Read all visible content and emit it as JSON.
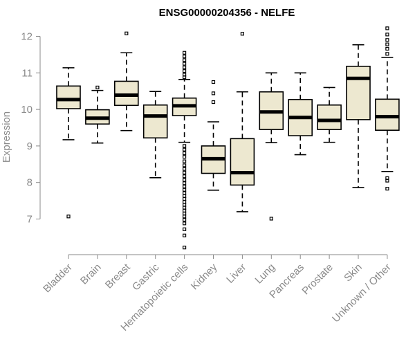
{
  "chart_data": {
    "type": "boxplot",
    "title": "ENSG00000204356 - NELFE",
    "ylabel": "Expression",
    "xlabel": "",
    "ylim": [
      6.0,
      12.4
    ],
    "yticks": [
      7,
      8,
      9,
      10,
      11,
      12
    ],
    "grid": false,
    "box_fill": "#ede8d0",
    "box_stroke": "#000000",
    "axis_color": "#8a8a8a",
    "categories": [
      "Bladder",
      "Brain",
      "Breast",
      "Gastric",
      "Hematopoietic cells",
      "Kidney",
      "Liver",
      "Lung",
      "Pancreas",
      "Prostate",
      "Skin",
      "Unknown / Other"
    ],
    "boxes": [
      {
        "category": "Bladder",
        "whisker_low": 9.17,
        "q1": 10.02,
        "median": 10.27,
        "q3": 10.64,
        "whisker_high": 11.14,
        "outliers": [
          7.07
        ]
      },
      {
        "category": "Brain",
        "whisker_low": 9.08,
        "q1": 9.6,
        "median": 9.76,
        "q3": 9.99,
        "whisker_high": 10.52,
        "outliers": [
          10.6
        ]
      },
      {
        "category": "Breast",
        "whisker_low": 9.42,
        "q1": 10.11,
        "median": 10.39,
        "q3": 10.77,
        "whisker_high": 11.55,
        "outliers": [
          12.08
        ]
      },
      {
        "category": "Gastric",
        "whisker_low": 8.13,
        "q1": 9.22,
        "median": 9.82,
        "q3": 10.12,
        "whisker_high": 10.49,
        "outliers": []
      },
      {
        "category": "Hematopoietic cells",
        "whisker_low": 9.1,
        "q1": 9.83,
        "median": 10.1,
        "q3": 10.31,
        "whisker_high": 10.82,
        "outliers": [
          11.55,
          11.45,
          11.35,
          11.25,
          11.15,
          11.05,
          10.95,
          10.88,
          9.0,
          8.9,
          8.8,
          8.7,
          8.58,
          8.47,
          8.37,
          8.27,
          8.17,
          8.07,
          7.98,
          7.89,
          7.8,
          7.71,
          7.63,
          7.55,
          7.47,
          7.39,
          7.31,
          7.23,
          7.15,
          7.07,
          6.98,
          6.88,
          6.72,
          6.55,
          6.22
        ]
      },
      {
        "category": "Kidney",
        "whisker_low": 7.79,
        "q1": 8.25,
        "median": 8.65,
        "q3": 9.0,
        "whisker_high": 9.66,
        "outliers": [
          10.2,
          10.44,
          10.75
        ]
      },
      {
        "category": "Liver",
        "whisker_low": 7.2,
        "q1": 7.93,
        "median": 8.27,
        "q3": 9.2,
        "whisker_high": 10.48,
        "outliers": [
          12.07
        ]
      },
      {
        "category": "Lung",
        "whisker_low": 9.09,
        "q1": 9.45,
        "median": 9.93,
        "q3": 10.48,
        "whisker_high": 11.0,
        "outliers": [
          7.01
        ]
      },
      {
        "category": "Pancreas",
        "whisker_low": 8.76,
        "q1": 9.28,
        "median": 9.78,
        "q3": 10.27,
        "whisker_high": 11.0,
        "outliers": []
      },
      {
        "category": "Prostate",
        "whisker_low": 9.1,
        "q1": 9.45,
        "median": 9.7,
        "q3": 10.12,
        "whisker_high": 10.6,
        "outliers": []
      },
      {
        "category": "Skin",
        "whisker_low": 7.86,
        "q1": 9.72,
        "median": 10.85,
        "q3": 11.18,
        "whisker_high": 11.77,
        "outliers": []
      },
      {
        "category": "Unknown / Other",
        "whisker_low": 8.3,
        "q1": 9.43,
        "median": 9.8,
        "q3": 10.28,
        "whisker_high": 11.42,
        "outliers": [
          12.22,
          12.05,
          11.9,
          11.78,
          11.66,
          11.52,
          8.12,
          8.05,
          7.83
        ]
      }
    ]
  }
}
